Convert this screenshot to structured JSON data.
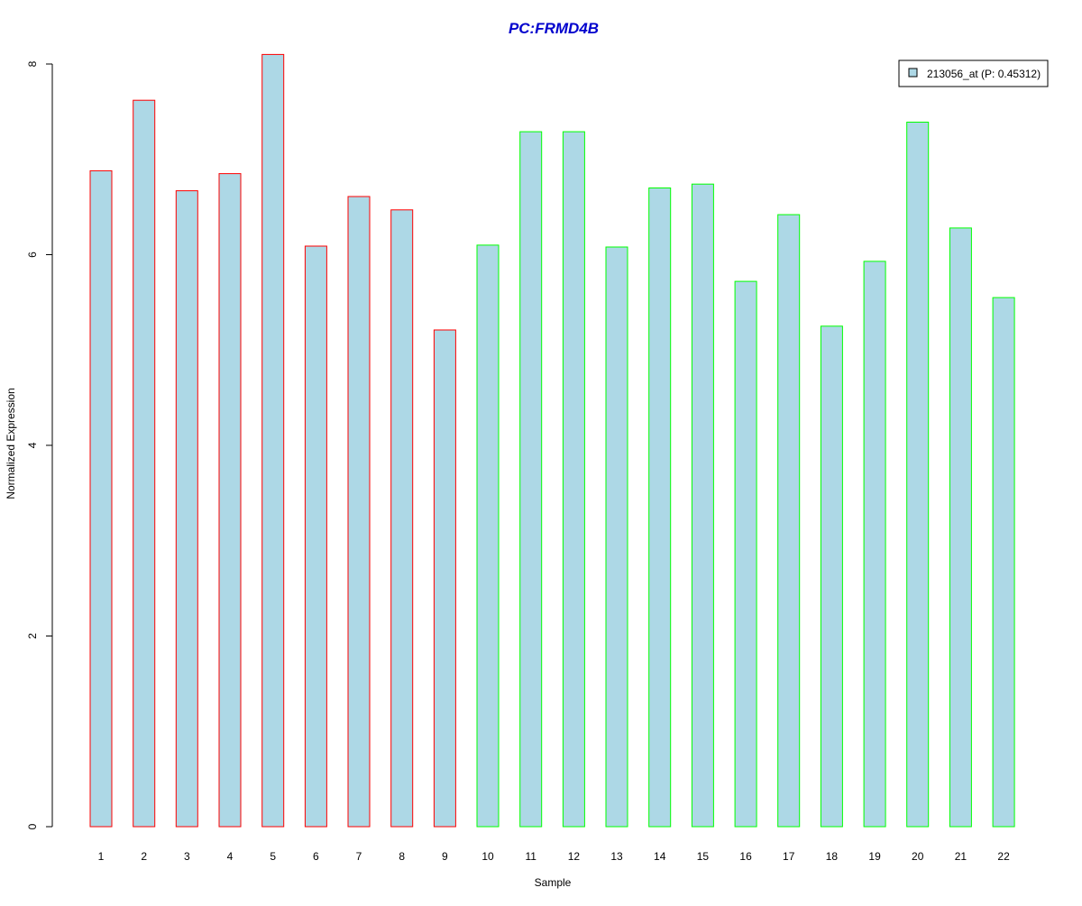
{
  "chart_data": {
    "type": "bar",
    "title": "PC:FRMD4B",
    "xlabel": "Sample",
    "ylabel": "Normalized Expression",
    "categories": [
      "1",
      "2",
      "3",
      "4",
      "5",
      "6",
      "7",
      "8",
      "9",
      "10",
      "11",
      "12",
      "13",
      "14",
      "15",
      "16",
      "17",
      "18",
      "19",
      "20",
      "21",
      "22"
    ],
    "series": [
      {
        "name": "213056_at (P: 0.45312)",
        "values": [
          6.88,
          7.62,
          6.67,
          6.85,
          8.1,
          6.09,
          6.61,
          6.47,
          5.21,
          6.1,
          7.29,
          7.29,
          6.08,
          6.7,
          6.74,
          5.72,
          6.42,
          5.25,
          5.93,
          7.39,
          6.28,
          5.55
        ]
      }
    ],
    "bar_fill": "#ADD8E6",
    "bar_border_colors": [
      "#FF0000",
      "#FF0000",
      "#FF0000",
      "#FF0000",
      "#FF0000",
      "#FF0000",
      "#FF0000",
      "#FF0000",
      "#FF0000",
      "#00FF00",
      "#00FF00",
      "#00FF00",
      "#00FF00",
      "#00FF00",
      "#00FF00",
      "#00FF00",
      "#00FF00",
      "#00FF00",
      "#00FF00",
      "#00FF00",
      "#00FF00",
      "#00FF00"
    ],
    "title_color": "#0000CD",
    "ylim": [
      0,
      8
    ],
    "yticks": [
      0,
      2,
      4,
      6,
      8
    ],
    "grid": false,
    "legend_position": "top-right"
  }
}
